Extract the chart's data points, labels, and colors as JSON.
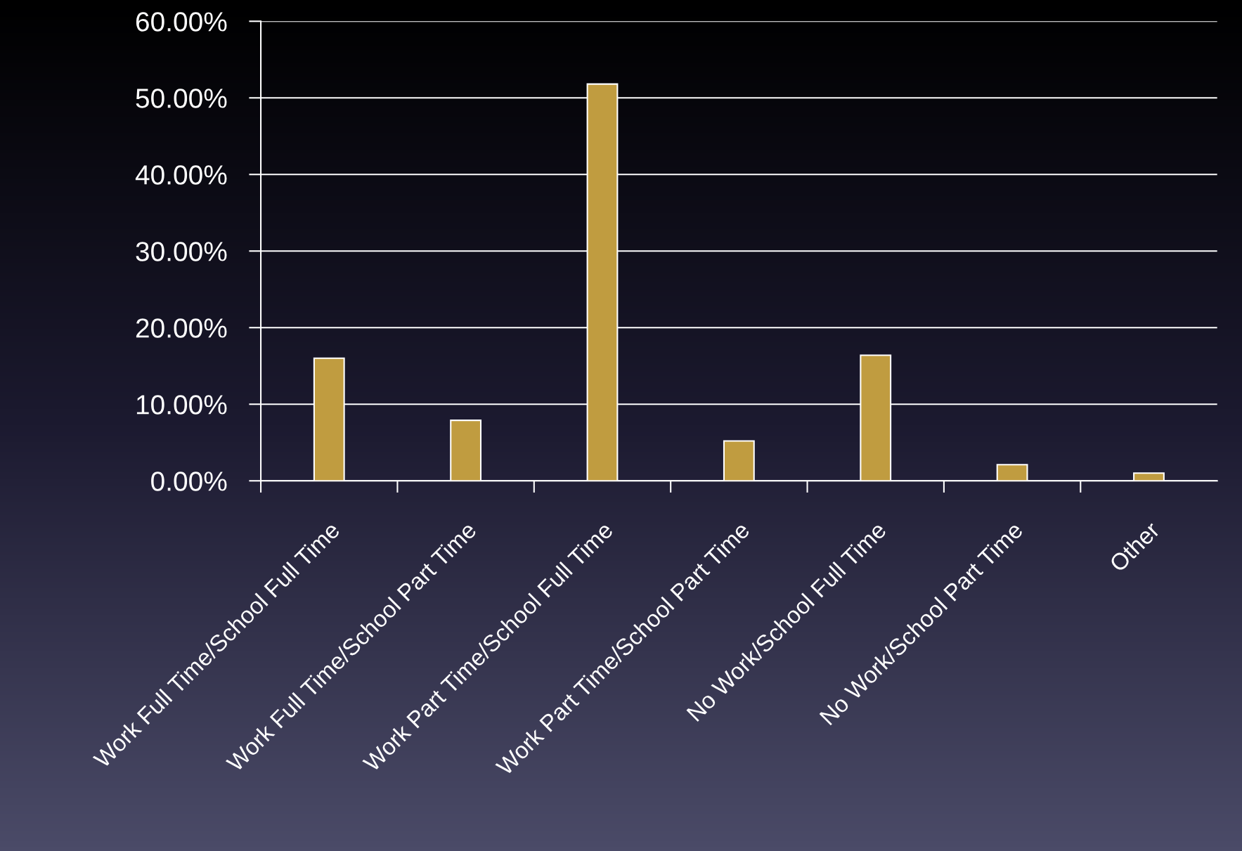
{
  "chart_data": {
    "type": "bar",
    "categories": [
      "Work Full Time/School Full Time",
      "Work Full Time/School Part Time",
      "Work Part Time/School Full Time",
      "Work Part Time/School Part Time",
      "No Work/School Full Time",
      "No Work/School Part Time",
      "Other"
    ],
    "values": [
      16.0,
      7.9,
      51.8,
      5.2,
      16.4,
      2.1,
      1.0
    ],
    "color": "#c09c40",
    "ylim": [
      0,
      60
    ],
    "yticks": [
      {
        "value": 0,
        "label": "0.00%"
      },
      {
        "value": 10,
        "label": "10.00%"
      },
      {
        "value": 20,
        "label": "20.00%"
      },
      {
        "value": 30,
        "label": "30.00%"
      },
      {
        "value": 40,
        "label": "40.00%"
      },
      {
        "value": 50,
        "label": "50.00%"
      },
      {
        "value": 60,
        "label": "60.00%"
      }
    ],
    "grid": "y"
  }
}
